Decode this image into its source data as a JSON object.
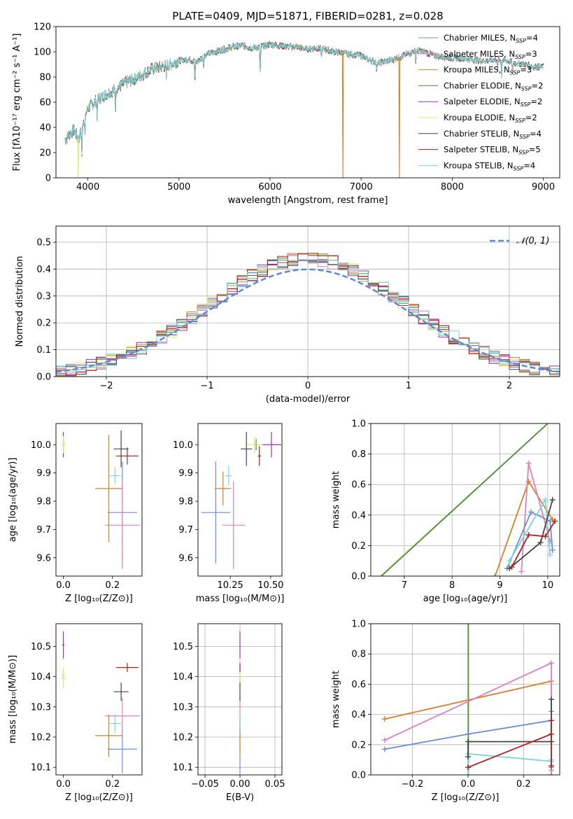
{
  "figure_title": "PLATE=0409, MJD=51871, FIBERID=0281, z=0.028",
  "colors": {
    "Chabrier MILES": "#6a8fd6",
    "Salpeter MILES": "#e07fbf",
    "Kroupa MILES": "#d98026",
    "Chabrier ELODIE": "#4f8a4f",
    "Salpeter ELODIE": "#9a33b8",
    "Kroupa ELODIE": "#d8f06a",
    "Chabrier STELIB": "#444444",
    "Salpeter STELIB": "#b51d1d",
    "Kroupa STELIB": "#77d8d8"
  },
  "chart_data": [
    {
      "id": "spectrum",
      "type": "line",
      "xlabel": "wavelength [Angstrom, rest frame]",
      "ylabel": "Flux [fλ10⁻¹⁷ erg cm⁻² s⁻¹ A⁻¹]",
      "xlim": [
        3650,
        9180
      ],
      "ylim": [
        0,
        120
      ],
      "xticks": [
        4000,
        5000,
        6000,
        7000,
        8000,
        9000
      ],
      "yticks": [
        0,
        20,
        40,
        60,
        80,
        100,
        120
      ],
      "legend_position": "upper right",
      "continuum": {
        "x": [
          3750,
          3800,
          3850,
          3900,
          3950,
          4000,
          4100,
          4200,
          4300,
          4400,
          4500,
          4600,
          4700,
          4800,
          4900,
          5000,
          5100,
          5200,
          5300,
          5400,
          5500,
          5600,
          5700,
          5800,
          5900,
          6000,
          6100,
          6200,
          6300,
          6400,
          6500,
          6600,
          6700,
          6800,
          6900,
          7000,
          7100,
          7200,
          7300,
          7400,
          7500,
          7600,
          7700,
          7800,
          7900,
          8000,
          8100,
          8200,
          8300,
          8400,
          8500,
          8600,
          8700,
          8800,
          8900,
          9000
        ],
        "y": [
          30,
          35,
          38,
          30,
          45,
          55,
          62,
          66,
          70,
          75,
          78,
          82,
          86,
          88,
          90,
          93,
          94,
          92,
          98,
          100,
          102,
          104,
          105,
          103,
          104,
          106,
          105,
          104,
          104,
          102,
          103,
          102,
          100,
          99,
          98,
          97,
          93,
          91,
          93,
          95,
          98,
          101,
          100,
          97,
          96,
          95,
          95,
          94,
          93,
          93,
          94,
          93,
          91,
          90,
          88,
          88
        ]
      },
      "dropouts": [
        {
          "x": 3895,
          "series": "Kroupa ELODIE"
        },
        {
          "x": 6800,
          "series": "Kroupa MILES"
        },
        {
          "x": 7420,
          "series": "Kroupa MILES"
        }
      ],
      "series": [
        {
          "name": "Chabrier MILES, N_SSP=4",
          "label": "Chabrier MILES, N",
          "sub": "SSP",
          "eq": "=4",
          "key": "Chabrier MILES"
        },
        {
          "name": "Salpeter MILES, N_SSP=3",
          "label": "Salpeter MILES, N",
          "sub": "SSP",
          "eq": "=3",
          "key": "Salpeter MILES"
        },
        {
          "name": "Kroupa MILES, N_SSP=3",
          "label": "Kroupa MILES, N",
          "sub": "SSP",
          "eq": "=3",
          "key": "Kroupa MILES"
        },
        {
          "name": "Chabrier ELODIE, N_SSP=2",
          "label": "Chabrier ELODIE, N",
          "sub": "SSP",
          "eq": "=2",
          "key": "Chabrier ELODIE"
        },
        {
          "name": "Salpeter ELODIE, N_SSP=2",
          "label": "Salpeter ELODIE, N",
          "sub": "SSP",
          "eq": "=2",
          "key": "Salpeter ELODIE"
        },
        {
          "name": "Kroupa ELODIE, N_SSP=2",
          "label": "Kroupa ELODIE, N",
          "sub": "SSP",
          "eq": "=2",
          "key": "Kroupa ELODIE"
        },
        {
          "name": "Chabrier STELIB, N_SSP=4",
          "label": "Chabrier STELIB, N",
          "sub": "SSP",
          "eq": "=4",
          "key": "Chabrier STELIB"
        },
        {
          "name": "Salpeter STELIB, N_SSP=5",
          "label": "Salpeter STELIB, N",
          "sub": "SSP",
          "eq": "=5",
          "key": "Salpeter STELIB"
        },
        {
          "name": "Kroupa STELIB, N_SSP=4",
          "label": "Kroupa STELIB, N",
          "sub": "SSP",
          "eq": "=4",
          "key": "Kroupa STELIB"
        }
      ]
    },
    {
      "id": "residuals",
      "type": "histogram",
      "xlabel": "(data-model)/error",
      "ylabel": "Normed distribution",
      "xlim": [
        -2.5,
        2.5
      ],
      "ylim": [
        0,
        0.56
      ],
      "xticks": [
        -2,
        -1,
        0,
        1,
        2
      ],
      "yticks": [
        0.0,
        0.1,
        0.2,
        0.3,
        0.4,
        0.5
      ],
      "grid": true,
      "legend_position": "upper right",
      "reference": {
        "name": "N(0,1)",
        "label": "𝒩(0, 1)",
        "color": "#5b8bd8"
      },
      "bin_edges_start": -2.5,
      "bin_width": 0.1,
      "bin_count": 50
    },
    {
      "id": "age_vs_Z",
      "type": "errorbar",
      "xlabel": "Z [log₁₀(Z/Z⊙)]",
      "ylabel": "age  [log₁₀(age/yr)]",
      "xlim": [
        -0.03,
        0.32
      ],
      "ylim": [
        9.535,
        10.075
      ],
      "xticks": [
        0.0,
        0.2
      ],
      "yticks": [
        9.6,
        9.7,
        9.8,
        9.9,
        10.0
      ],
      "points": [
        {
          "key": "Chabrier MILES",
          "x": 0.24,
          "xerr": 0.06,
          "y": 9.76,
          "yerr": 0.18
        },
        {
          "key": "Salpeter MILES",
          "x": 0.24,
          "xerr": 0.07,
          "y": 9.715,
          "yerr": 0.155
        },
        {
          "key": "Kroupa MILES",
          "x": 0.185,
          "xerr": 0.055,
          "y": 9.845,
          "yerr": 0.19
        },
        {
          "key": "Chabrier ELODIE",
          "x": 0.0,
          "xerr": 0.003,
          "y": 10.0,
          "yerr": 0.02
        },
        {
          "key": "Salpeter ELODIE",
          "x": 0.0,
          "xerr": 0.003,
          "y": 10.0,
          "yerr": 0.045
        },
        {
          "key": "Kroupa ELODIE",
          "x": 0.0,
          "xerr": 0.01,
          "y": 10.0,
          "yerr": 0.03
        },
        {
          "key": "Chabrier STELIB",
          "x": 0.235,
          "xerr": 0.03,
          "y": 9.985,
          "yerr": 0.065
        },
        {
          "key": "Salpeter STELIB",
          "x": 0.26,
          "xerr": 0.045,
          "y": 9.96,
          "yerr": 0.03
        },
        {
          "key": "Kroupa STELIB",
          "x": 0.21,
          "xerr": 0.025,
          "y": 9.89,
          "yerr": 0.03
        }
      ]
    },
    {
      "id": "age_vs_mass",
      "type": "errorbar",
      "xlabel": "mass [log₁₀(M/M⊙)]",
      "ylabel": "",
      "xlim": [
        10.05,
        10.57
      ],
      "ylim": [
        9.535,
        10.075
      ],
      "xticks": [
        10.25,
        10.5
      ],
      "xticklabels": [
        "10.25",
        "10.50"
      ],
      "yticks": [
        9.6,
        9.7,
        9.8,
        9.9,
        10.0
      ],
      "points": [
        {
          "key": "Chabrier MILES",
          "x": 10.16,
          "xerr": 0.09,
          "y": 9.76,
          "yerr": 0.18
        },
        {
          "key": "Salpeter MILES",
          "x": 10.27,
          "xerr": 0.07,
          "y": 9.715,
          "yerr": 0.155
        },
        {
          "key": "Kroupa MILES",
          "x": 10.205,
          "xerr": 0.05,
          "y": 9.845,
          "yerr": 0.06
        },
        {
          "key": "Chabrier ELODIE",
          "x": 10.41,
          "xerr": 0.015,
          "y": 10.0,
          "yerr": 0.02
        },
        {
          "key": "Salpeter ELODIE",
          "x": 10.505,
          "xerr": 0.06,
          "y": 10.0,
          "yerr": 0.045
        },
        {
          "key": "Kroupa ELODIE",
          "x": 10.4,
          "xerr": 0.05,
          "y": 10.0,
          "yerr": 0.03
        },
        {
          "key": "Chabrier STELIB",
          "x": 10.35,
          "xerr": 0.035,
          "y": 9.985,
          "yerr": 0.06
        },
        {
          "key": "Salpeter STELIB",
          "x": 10.43,
          "xerr": 0.01,
          "y": 9.96,
          "yerr": 0.035
        },
        {
          "key": "Kroupa STELIB",
          "x": 10.24,
          "xerr": 0.02,
          "y": 9.89,
          "yerr": 0.035
        }
      ]
    },
    {
      "id": "massweight_vs_age",
      "type": "line",
      "xlabel": "age  [log₁₀(age/yr)]",
      "ylabel": "mass weight",
      "xlim": [
        6.3,
        10.25
      ],
      "ylim": [
        0.0,
        1.0
      ],
      "xticks": [
        7,
        8,
        9,
        10
      ],
      "yticks": [
        0.0,
        0.2,
        0.4,
        0.6,
        0.8,
        1.0
      ],
      "grid": true,
      "series": [
        {
          "key": "Kroupa ELODIE",
          "x": [
            6.5,
            10.0
          ],
          "y": [
            0.0,
            1.0
          ],
          "markers": false
        },
        {
          "key": "Chabrier ELODIE",
          "x": [
            6.52,
            10.0
          ],
          "y": [
            0.0,
            1.0
          ],
          "markers": false
        },
        {
          "key": "Kroupa MILES",
          "x": [
            8.9,
            9.6,
            10.1
          ],
          "y": [
            0.0,
            0.62,
            0.37
          ],
          "markers": true
        },
        {
          "key": "Salpeter MILES",
          "x": [
            9.45,
            9.6,
            10.05
          ],
          "y": [
            0.03,
            0.74,
            0.23
          ],
          "markers": true
        },
        {
          "key": "Chabrier MILES",
          "x": [
            9.15,
            9.65,
            10.05,
            10.1
          ],
          "y": [
            0.05,
            0.42,
            0.36,
            0.17
          ],
          "markers": true
        },
        {
          "key": "Kroupa STELIB",
          "x": [
            9.2,
            9.95,
            10.05
          ],
          "y": [
            0.1,
            0.5,
            0.14
          ],
          "markers": true
        },
        {
          "key": "Chabrier STELIB",
          "x": [
            9.2,
            9.85,
            10.1
          ],
          "y": [
            0.05,
            0.22,
            0.5
          ],
          "markers": true
        },
        {
          "key": "Salpeter STELIB",
          "x": [
            9.25,
            9.6,
            9.95,
            10.15
          ],
          "y": [
            0.06,
            0.27,
            0.26,
            0.36
          ],
          "markers": true
        }
      ]
    },
    {
      "id": "mass_vs_Z",
      "type": "errorbar",
      "xlabel": "Z [log₁₀(Z/Z⊙)]",
      "ylabel": "mass [log₁₀(M/M⊙)]",
      "xlim": [
        -0.03,
        0.32
      ],
      "ylim": [
        10.075,
        10.575
      ],
      "xticks": [
        0.0,
        0.2
      ],
      "yticks": [
        10.1,
        10.2,
        10.3,
        10.4,
        10.5
      ],
      "points": [
        {
          "key": "Chabrier MILES",
          "x": 0.24,
          "xerr": 0.06,
          "y": 10.16,
          "yerr": 0.08
        },
        {
          "key": "Salpeter MILES",
          "x": 0.24,
          "xerr": 0.07,
          "y": 10.27,
          "yerr": 0.06
        },
        {
          "key": "Kroupa MILES",
          "x": 0.185,
          "xerr": 0.055,
          "y": 10.205,
          "yerr": 0.07
        },
        {
          "key": "Chabrier ELODIE",
          "x": 0.0,
          "xerr": 0.003,
          "y": 10.405,
          "yerr": 0.02
        },
        {
          "key": "Salpeter ELODIE",
          "x": 0.0,
          "xerr": 0.005,
          "y": 10.505,
          "yerr": 0.045
        },
        {
          "key": "Kroupa ELODIE",
          "x": 0.0,
          "xerr": 0.01,
          "y": 10.395,
          "yerr": 0.035
        },
        {
          "key": "Chabrier STELIB",
          "x": 0.235,
          "xerr": 0.03,
          "y": 10.35,
          "yerr": 0.03
        },
        {
          "key": "Salpeter STELIB",
          "x": 0.26,
          "xerr": 0.045,
          "y": 10.43,
          "yerr": 0.015
        },
        {
          "key": "Kroupa STELIB",
          "x": 0.21,
          "xerr": 0.025,
          "y": 10.245,
          "yerr": 0.03
        }
      ]
    },
    {
      "id": "mass_vs_ebv",
      "type": "errorbar",
      "xlabel": "E(B-V)",
      "ylabel": "",
      "xlim": [
        -0.06,
        0.06
      ],
      "ylim": [
        10.075,
        10.575
      ],
      "xticks": [
        -0.05,
        0.0,
        0.05
      ],
      "xticklabels": [
        "−0.05",
        "0.00",
        "0.05"
      ],
      "yticks": [
        10.1,
        10.2,
        10.3,
        10.4,
        10.5
      ],
      "grid": true,
      "points": [
        {
          "key": "Chabrier MILES",
          "x": 0.0,
          "xerr": 0.0,
          "y": 10.16,
          "yerr": 0.08
        },
        {
          "key": "Salpeter MILES",
          "x": 0.0,
          "xerr": 0.0,
          "y": 10.27,
          "yerr": 0.06
        },
        {
          "key": "Kroupa MILES",
          "x": 0.0,
          "xerr": 0.0,
          "y": 10.205,
          "yerr": 0.07
        },
        {
          "key": "Chabrier ELODIE",
          "x": 0.0,
          "xerr": 0.0,
          "y": 10.405,
          "yerr": 0.02
        },
        {
          "key": "Salpeter ELODIE",
          "x": 0.0,
          "xerr": 0.0,
          "y": 10.505,
          "yerr": 0.045
        },
        {
          "key": "Kroupa ELODIE",
          "x": 0.0,
          "xerr": 0.0,
          "y": 10.395,
          "yerr": 0.035
        },
        {
          "key": "Chabrier STELIB",
          "x": 0.0,
          "xerr": 0.0,
          "y": 10.35,
          "yerr": 0.03
        },
        {
          "key": "Salpeter STELIB",
          "x": 0.0,
          "xerr": 0.0,
          "y": 10.43,
          "yerr": 0.015
        },
        {
          "key": "Kroupa STELIB",
          "x": 0.0,
          "xerr": 0.0,
          "y": 10.245,
          "yerr": 0.03
        }
      ]
    },
    {
      "id": "massweight_vs_Z",
      "type": "line",
      "xlabel": "Z [log₁₀(Z/Z⊙)]",
      "ylabel": "mass weight",
      "xlim": [
        -0.35,
        0.33
      ],
      "ylim": [
        0.0,
        1.0
      ],
      "xticks": [
        -0.2,
        0.0,
        0.2
      ],
      "xticklabels": [
        "−0.2",
        "0.0",
        "0.2"
      ],
      "yticks": [
        0.0,
        0.2,
        0.4,
        0.6,
        0.8,
        1.0
      ],
      "grid": true,
      "series": [
        {
          "key": "Kroupa ELODIE",
          "x": [
            0.0,
            0.0
          ],
          "y": [
            0.0,
            1.0
          ],
          "markers": false
        },
        {
          "key": "Chabrier ELODIE",
          "x": [
            0.001,
            0.001
          ],
          "y": [
            0.0,
            1.0
          ],
          "markers": false
        },
        {
          "key": "Kroupa MILES",
          "x": [
            -0.3,
            0.3,
            0.3
          ],
          "y": [
            0.37,
            0.62,
            0.0
          ],
          "markers": true
        },
        {
          "key": "Salpeter MILES",
          "x": [
            -0.3,
            0.3,
            0.3
          ],
          "y": [
            0.23,
            0.74,
            0.03
          ],
          "markers": true
        },
        {
          "key": "Chabrier MILES",
          "x": [
            -0.3,
            0.0,
            0.3,
            0.3,
            0.3
          ],
          "y": [
            0.17,
            0.27,
            0.36,
            0.42,
            0.05
          ],
          "markers": true
        },
        {
          "key": "Kroupa STELIB",
          "x": [
            0.0,
            0.0,
            0.3,
            0.3,
            0.3
          ],
          "y": [
            0.0,
            0.14,
            0.09,
            0.5,
            0.1
          ],
          "markers": true
        },
        {
          "key": "Chabrier STELIB",
          "x": [
            0.0,
            0.0,
            0.3,
            0.3
          ],
          "y": [
            0.12,
            0.22,
            0.22,
            0.5
          ],
          "markers": true
        },
        {
          "key": "Salpeter STELIB",
          "x": [
            0.0,
            0.3,
            0.3,
            0.3
          ],
          "y": [
            0.05,
            0.27,
            0.36,
            0.06
          ],
          "markers": true
        }
      ]
    }
  ]
}
